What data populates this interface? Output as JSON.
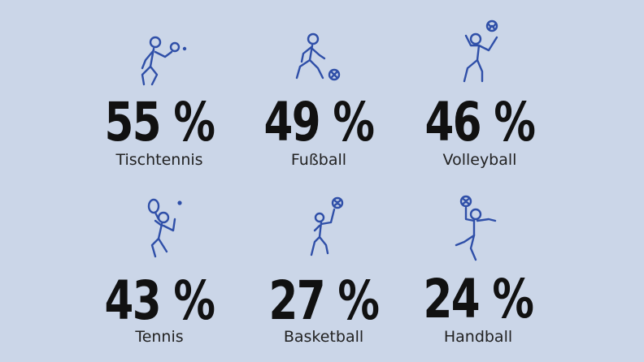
{
  "colors": {
    "background": "#cbd6e8",
    "icon": "#2f4fa8",
    "text": "#111111"
  },
  "sports": [
    {
      "icon": "table-tennis-icon",
      "value": "55 %",
      "label": "Tischtennis"
    },
    {
      "icon": "football-icon",
      "value": "49 %",
      "label": "Fußball"
    },
    {
      "icon": "volleyball-icon",
      "value": "46 %",
      "label": "Volleyball"
    },
    {
      "icon": "tennis-icon",
      "value": "43 %",
      "label": "Tennis"
    },
    {
      "icon": "basketball-icon",
      "value": "27 %",
      "label": "Basketball"
    },
    {
      "icon": "handball-icon",
      "value": "24 %",
      "label": "Handball"
    }
  ]
}
